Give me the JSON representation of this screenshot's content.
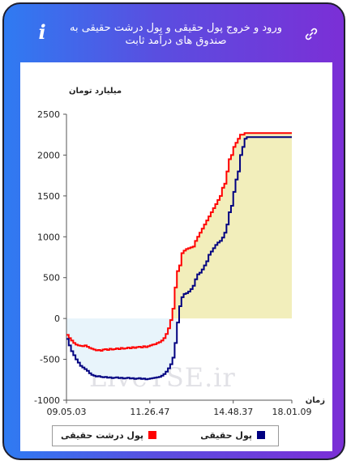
{
  "header": {
    "title": "ورود و خروج پول حقیقی و پول درشت حقیقی به صندوق های درآمد ثابت",
    "info_icon": "info-icon",
    "link_icon": "link-icon"
  },
  "watermark": "LiveTSE.ir",
  "colors": {
    "series1": "#000080",
    "series2": "#ff0000",
    "fill_positive": "#f2eebb",
    "fill_negative": "#e8f4fb"
  },
  "chart_data": {
    "type": "line",
    "ylabel": "میلیارد تومان",
    "xlabel": "زمان",
    "ylim": [
      -1000,
      2500
    ],
    "yticks": [
      -1000,
      -500,
      0,
      500,
      1000,
      1500,
      2000,
      2500
    ],
    "xticks": [
      "09.05.03",
      "11.26.47",
      "14.48.37",
      "18.01.09"
    ],
    "grid": false,
    "legend_position": "bottom",
    "x": [
      0,
      1,
      2,
      3,
      4,
      5,
      6,
      7,
      8,
      9,
      10,
      11,
      12,
      13,
      14,
      15,
      16,
      17,
      18,
      19,
      20,
      21,
      22,
      23,
      24,
      25,
      26,
      27,
      28,
      29,
      30,
      31,
      32,
      33,
      34,
      35,
      36,
      37,
      38,
      39,
      40,
      41,
      42,
      43,
      44,
      45,
      46,
      47,
      48,
      49,
      50,
      51,
      52,
      53,
      54,
      55,
      56,
      57,
      58,
      59,
      60,
      61,
      62,
      63,
      64,
      65,
      66,
      67,
      68,
      69,
      70,
      71,
      72,
      73,
      74,
      75,
      76,
      77,
      78,
      79,
      80,
      81,
      82,
      83,
      84,
      85,
      86,
      87,
      88,
      89,
      90,
      91,
      92,
      93,
      94,
      95,
      96,
      97,
      98,
      99,
      100
    ],
    "series": [
      {
        "name": "پول حقیقی",
        "values": [
          -250,
          -330,
          -400,
          -450,
          -500,
          -540,
          -580,
          -600,
          -620,
          -640,
          -670,
          -690,
          -700,
          -710,
          -705,
          -715,
          -720,
          -715,
          -725,
          -720,
          -730,
          -725,
          -720,
          -730,
          -725,
          -735,
          -730,
          -725,
          -735,
          -730,
          -740,
          -735,
          -730,
          -740,
          -735,
          -745,
          -740,
          -735,
          -730,
          -725,
          -720,
          -715,
          -700,
          -680,
          -650,
          -610,
          -560,
          -480,
          -300,
          -50,
          150,
          260,
          300,
          310,
          330,
          360,
          400,
          480,
          540,
          560,
          600,
          650,
          700,
          780,
          820,
          860,
          900,
          930,
          950,
          990,
          1050,
          1150,
          1300,
          1380,
          1550,
          1700,
          1800,
          2000,
          2100,
          2200,
          2220,
          2220,
          2220,
          2220,
          2220,
          2220,
          2220,
          2220,
          2220,
          2220,
          2220,
          2220,
          2220,
          2220,
          2220,
          2220,
          2220,
          2220,
          2220,
          2220,
          2220
        ]
      },
      {
        "name": "پول درشت حقیقی",
        "values": [
          -200,
          -240,
          -270,
          -300,
          -320,
          -330,
          -335,
          -340,
          -330,
          -345,
          -360,
          -370,
          -380,
          -390,
          -385,
          -395,
          -380,
          -375,
          -385,
          -370,
          -380,
          -375,
          -365,
          -375,
          -360,
          -370,
          -365,
          -355,
          -365,
          -350,
          -360,
          -350,
          -345,
          -355,
          -340,
          -350,
          -340,
          -330,
          -320,
          -315,
          -300,
          -290,
          -270,
          -240,
          -190,
          -120,
          -20,
          120,
          380,
          580,
          650,
          800,
          830,
          850,
          860,
          870,
          880,
          950,
          1000,
          1050,
          1100,
          1150,
          1200,
          1250,
          1300,
          1350,
          1400,
          1450,
          1500,
          1600,
          1650,
          1800,
          1950,
          2000,
          2100,
          2150,
          2200,
          2250,
          2250,
          2270,
          2270,
          2270,
          2270,
          2270,
          2270,
          2270,
          2270,
          2270,
          2270,
          2270,
          2270,
          2270,
          2270,
          2270,
          2270,
          2270,
          2270,
          2270,
          2270,
          2270,
          2270
        ]
      }
    ]
  }
}
